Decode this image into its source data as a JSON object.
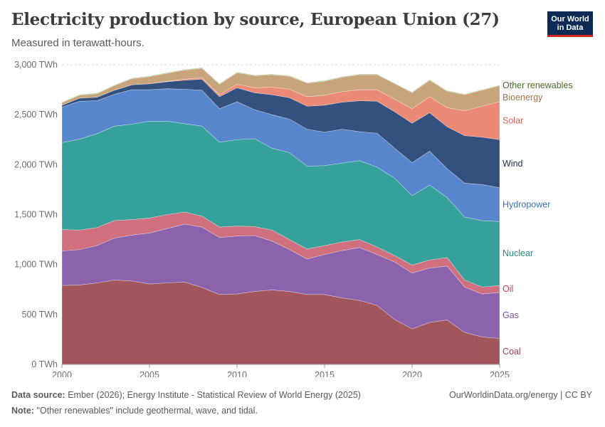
{
  "header": {
    "title": "Electricity production by source, European Union (27)",
    "subtitle": "Measured in terawatt-hours."
  },
  "logo": {
    "line1": "Our World",
    "line2": "in Data",
    "bg": "#0d2a54",
    "accent": "#ce261e"
  },
  "footer": {
    "source_label": "Data source:",
    "source_text": "Ember (2026); Energy Institute - Statistical Review of World Energy (2025)",
    "right_text": "OurWorldinData.org/energy | CC BY",
    "note_label": "Note:",
    "note_text": "\"Other renewables\" include geothermal, wave, and tidal."
  },
  "chart_data": {
    "type": "area",
    "stacked": true,
    "x": [
      2000,
      2001,
      2002,
      2003,
      2004,
      2005,
      2006,
      2007,
      2008,
      2009,
      2010,
      2011,
      2012,
      2013,
      2014,
      2015,
      2016,
      2017,
      2018,
      2019,
      2020,
      2021,
      2022,
      2023,
      2024,
      2025
    ],
    "x_ticks": [
      2000,
      2005,
      2010,
      2015,
      2020,
      2025
    ],
    "y_ticks": [
      {
        "value": 0,
        "label": "0 TWh"
      },
      {
        "value": 500,
        "label": "500 TWh"
      },
      {
        "value": 1000,
        "label": "1,000 TWh"
      },
      {
        "value": 1500,
        "label": "1,500 TWh"
      },
      {
        "value": 2000,
        "label": "2,000 TWh"
      },
      {
        "value": 2500,
        "label": "2,500 TWh"
      },
      {
        "value": 3000,
        "label": "3,000 TWh"
      }
    ],
    "xlim": [
      2000,
      2025
    ],
    "ylim": [
      0,
      3000
    ],
    "x_unit": "year",
    "y_unit": "TWh",
    "legend_position": "right",
    "series": [
      {
        "name": "Coal",
        "color": "#a2555a",
        "label_color": "#a2404a",
        "values": [
          790,
          795,
          815,
          845,
          835,
          805,
          815,
          825,
          770,
          700,
          705,
          730,
          745,
          730,
          700,
          700,
          665,
          640,
          590,
          450,
          355,
          420,
          445,
          320,
          275,
          260
        ]
      },
      {
        "name": "Gas",
        "color": "#8b63ad",
        "label_color": "#7e4e9c",
        "values": [
          345,
          355,
          375,
          420,
          460,
          510,
          545,
          580,
          605,
          570,
          580,
          560,
          490,
          420,
          355,
          400,
          475,
          530,
          510,
          575,
          560,
          545,
          540,
          455,
          430,
          460
        ]
      },
      {
        "name": "Oil",
        "color": "#d0707f",
        "label_color": "#c2405a",
        "values": [
          215,
          195,
          180,
          175,
          155,
          150,
          140,
          120,
          110,
          105,
          100,
          90,
          110,
          100,
          100,
          90,
          85,
          80,
          75,
          65,
          80,
          80,
          85,
          70,
          70,
          70
        ]
      },
      {
        "name": "Nuclear",
        "color": "#36a19a",
        "label_color": "#218d81",
        "values": [
          870,
          910,
          940,
          945,
          955,
          970,
          935,
          885,
          900,
          850,
          865,
          880,
          820,
          870,
          830,
          800,
          790,
          790,
          800,
          775,
          695,
          750,
          600,
          630,
          665,
          640
        ]
      },
      {
        "name": "Hydropower",
        "color": "#5886cc",
        "label_color": "#3b71b8",
        "values": [
          355,
          380,
          330,
          320,
          345,
          315,
          325,
          345,
          360,
          335,
          380,
          290,
          335,
          335,
          370,
          335,
          340,
          290,
          340,
          300,
          330,
          340,
          290,
          340,
          360,
          340
        ]
      },
      {
        "name": "Wind",
        "color": "#33507e",
        "label_color": "#1b2d55",
        "values": [
          20,
          30,
          35,
          40,
          50,
          60,
          70,
          90,
          110,
          120,
          140,
          170,
          200,
          215,
          230,
          270,
          270,
          310,
          320,
          365,
          395,
          385,
          420,
          475,
          475,
          480
        ]
      },
      {
        "name": "Solar",
        "color": "#ec8a78",
        "label_color": "#ea5c4d",
        "values": [
          0,
          0,
          0,
          0,
          0,
          0,
          5,
          10,
          15,
          20,
          35,
          50,
          75,
          85,
          95,
          100,
          105,
          110,
          115,
          125,
          145,
          160,
          190,
          250,
          310,
          380
        ]
      },
      {
        "name": "Bioenergy",
        "color": "#c8a47a",
        "label_color": "#a2754f",
        "values": [
          25,
          30,
          35,
          45,
          60,
          70,
          80,
          90,
          95,
          105,
          115,
          120,
          125,
          130,
          135,
          140,
          145,
          150,
          150,
          155,
          160,
          165,
          165,
          160,
          160,
          160
        ]
      },
      {
        "name": "Other renewables",
        "color": "#93ad6a",
        "label_color": "#4c6a29",
        "values": [
          6,
          6,
          6,
          6,
          6,
          6,
          6,
          6,
          6,
          6,
          6,
          6,
          6,
          6,
          6,
          6,
          6,
          6,
          6,
          6,
          6,
          6,
          6,
          6,
          6,
          6
        ]
      }
    ]
  }
}
